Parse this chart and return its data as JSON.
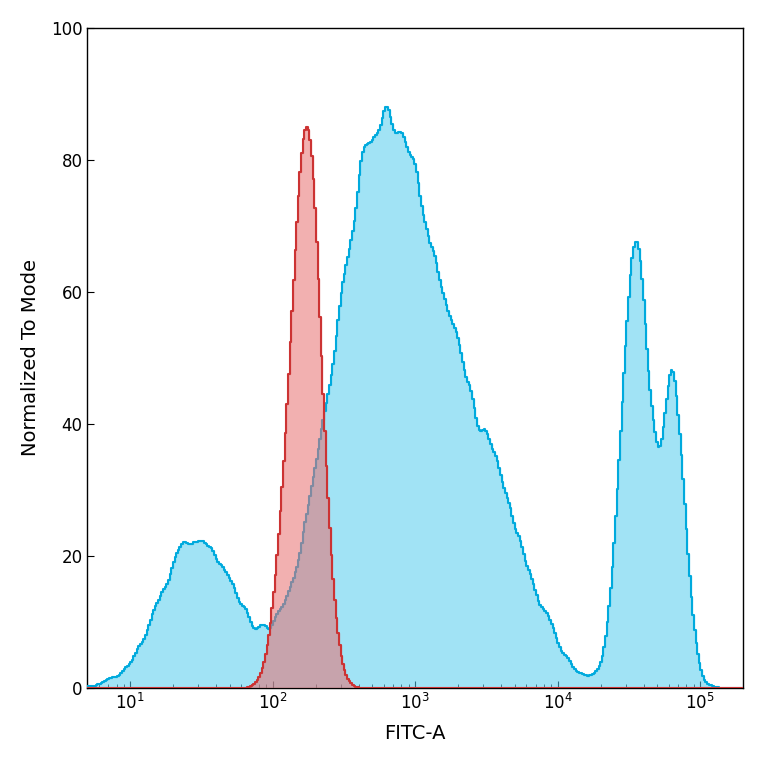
{
  "title": "",
  "xlabel": "FITC-A",
  "ylabel": "Normalized To Mode",
  "xlim": [
    5,
    200000
  ],
  "ylim": [
    0,
    100
  ],
  "yticks": [
    0,
    20,
    40,
    60,
    80,
    100
  ],
  "red_color": "#E87070",
  "red_edge_color": "#CC3333",
  "cyan_color": "#55CCEE",
  "cyan_edge_color": "#00AADD",
  "fill_alpha_red": 0.55,
  "fill_alpha_cyan": 0.55,
  "background_color": "#ffffff",
  "figsize": [
    7.64,
    7.64
  ],
  "dpi": 100
}
